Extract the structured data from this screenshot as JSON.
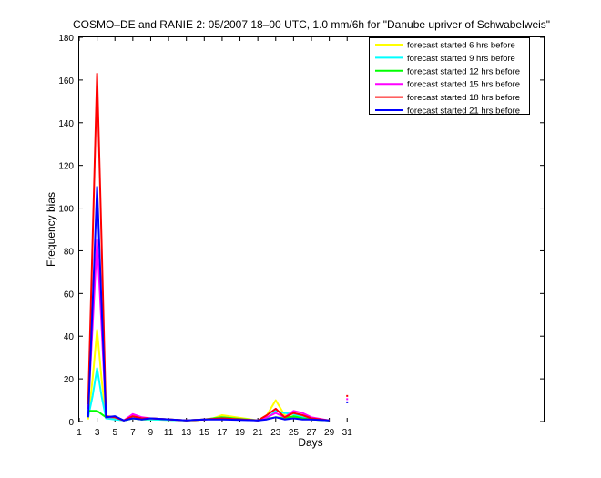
{
  "chart_data": {
    "type": "line",
    "title": "COSMO–DE and RANIE 2: 05/2007 18–00 UTC, 1.0 mm/6h for \"Danube upriver of Schwabelweis\"",
    "xlabel": "Days",
    "ylabel": "Frequency bias",
    "xlim": [
      1,
      53
    ],
    "ylim": [
      0,
      180
    ],
    "xticks": [
      "1",
      "3",
      "5",
      "7",
      "9",
      "11",
      "13",
      "15",
      "17",
      "19",
      "21",
      "23",
      "25",
      "27",
      "29",
      "31"
    ],
    "yticks": [
      "0",
      "20",
      "40",
      "60",
      "80",
      "100",
      "120",
      "140",
      "160",
      "180"
    ],
    "grid": false,
    "legend_position": "top-right",
    "series": [
      {
        "name": "forecast started 6 hrs before",
        "color": "#ffff00",
        "points": [
          [
            2,
            1
          ],
          [
            2.5,
            20
          ],
          [
            3,
            43
          ],
          [
            3.5,
            20
          ],
          [
            4,
            1.5
          ],
          [
            5,
            1.5
          ],
          [
            6,
            0.5
          ],
          [
            7,
            1.5
          ],
          [
            8,
            1
          ],
          [
            9,
            1
          ],
          [
            13,
            0.5
          ],
          [
            14,
            0.5
          ],
          [
            15,
            1
          ],
          [
            16,
            1.5
          ],
          [
            17,
            3
          ],
          [
            21,
            0.5
          ],
          [
            22,
            3
          ],
          [
            23,
            10
          ],
          [
            24,
            3
          ],
          [
            25,
            2
          ],
          [
            26,
            1.5
          ],
          [
            27,
            1
          ],
          [
            29,
            0.5
          ]
        ]
      },
      {
        "name": "forecast started 9 hrs before",
        "color": "#00ffff",
        "points": [
          [
            2,
            2
          ],
          [
            2.5,
            12
          ],
          [
            3,
            25
          ],
          [
            3.5,
            12
          ],
          [
            4,
            1.5
          ],
          [
            5,
            1
          ],
          [
            6,
            0.5
          ],
          [
            7,
            1.5
          ],
          [
            8,
            1
          ],
          [
            9,
            1
          ],
          [
            13,
            0.5
          ],
          [
            15,
            1
          ],
          [
            17,
            1.5
          ],
          [
            21,
            0.5
          ],
          [
            22,
            1.5
          ],
          [
            23,
            5
          ],
          [
            24,
            4
          ],
          [
            25,
            3.5
          ],
          [
            26,
            2
          ],
          [
            27,
            1
          ],
          [
            29,
            0.5
          ]
        ]
      },
      {
        "name": "forecast started 12 hrs before",
        "color": "#00ff00",
        "points": [
          [
            2,
            5
          ],
          [
            3,
            5
          ],
          [
            4,
            2
          ],
          [
            5,
            2
          ],
          [
            6,
            0.5
          ],
          [
            7,
            1.5
          ],
          [
            8,
            1
          ],
          [
            9,
            1.5
          ],
          [
            13,
            0.5
          ],
          [
            15,
            1
          ],
          [
            17,
            2
          ],
          [
            21,
            0.5
          ],
          [
            23,
            2
          ],
          [
            24,
            1.5
          ],
          [
            25,
            2.5
          ],
          [
            26,
            1.5
          ],
          [
            27,
            1
          ],
          [
            29,
            0.5
          ]
        ]
      },
      {
        "name": "forecast started 15 hrs before",
        "color": "#ff00ff",
        "points": [
          [
            2,
            6
          ],
          [
            2.5,
            45
          ],
          [
            3,
            85
          ],
          [
            3.5,
            45
          ],
          [
            4,
            2
          ],
          [
            5,
            2
          ],
          [
            6,
            0.5
          ],
          [
            7,
            3.5
          ],
          [
            8,
            2
          ],
          [
            9,
            1.5
          ],
          [
            13,
            0.5
          ],
          [
            15,
            1
          ],
          [
            17,
            1.5
          ],
          [
            21,
            0.5
          ],
          [
            22,
            2
          ],
          [
            23,
            4
          ],
          [
            24,
            2
          ],
          [
            25,
            5
          ],
          [
            26,
            4
          ],
          [
            27,
            2
          ],
          [
            29,
            0.5
          ]
        ]
      },
      {
        "name": "forecast started 18 hrs before",
        "color": "#ff0000",
        "points": [
          [
            2,
            8
          ],
          [
            2.5,
            85
          ],
          [
            3,
            163
          ],
          [
            3.5,
            85
          ],
          [
            4,
            2.5
          ],
          [
            5,
            2
          ],
          [
            6,
            0.5
          ],
          [
            7,
            2.5
          ],
          [
            8,
            1.5
          ],
          [
            9,
            1.5
          ],
          [
            13,
            0.5
          ],
          [
            15,
            1
          ],
          [
            17,
            1.5
          ],
          [
            21,
            0.5
          ],
          [
            22,
            3
          ],
          [
            23,
            6
          ],
          [
            24,
            2
          ],
          [
            25,
            4
          ],
          [
            26,
            3
          ],
          [
            27,
            1.5
          ],
          [
            29,
            0.5
          ]
        ]
      },
      {
        "name": "forecast started 21 hrs before",
        "color": "#0000ff",
        "points": [
          [
            2,
            2
          ],
          [
            2.5,
            55
          ],
          [
            3,
            110
          ],
          [
            3.5,
            55
          ],
          [
            4,
            2
          ],
          [
            5,
            2.5
          ],
          [
            6,
            0.5
          ],
          [
            7,
            1.5
          ],
          [
            8,
            1
          ],
          [
            9,
            1.5
          ],
          [
            13,
            0.5
          ],
          [
            15,
            1
          ],
          [
            17,
            1
          ],
          [
            21,
            0.5
          ],
          [
            22,
            1
          ],
          [
            23,
            2
          ],
          [
            24,
            1
          ],
          [
            25,
            1.5
          ],
          [
            26,
            1
          ],
          [
            27,
            1
          ],
          [
            29,
            0.5
          ]
        ]
      }
    ],
    "isolated_points": [
      {
        "color": "#ff0000",
        "x": 31,
        "y": 12
      },
      {
        "color": "#ff00ff",
        "x": 31,
        "y": 10.5
      },
      {
        "color": "#0000ff",
        "x": 31,
        "y": 9
      }
    ]
  }
}
